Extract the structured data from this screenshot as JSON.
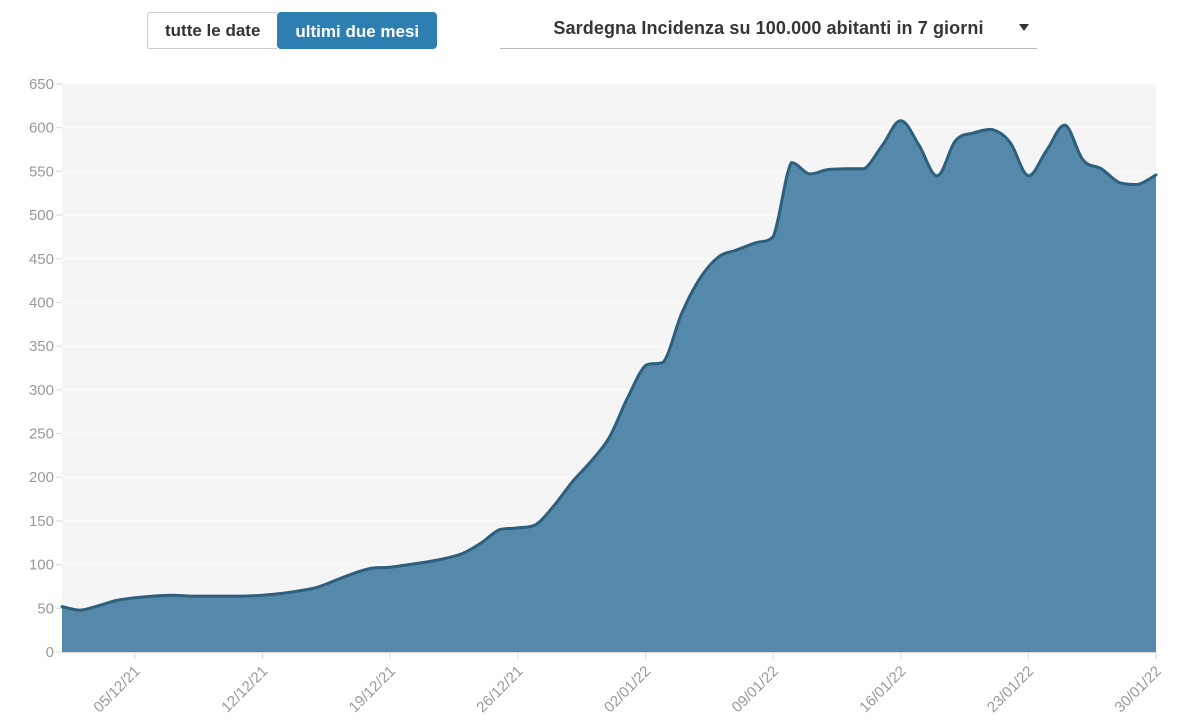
{
  "header": {
    "buttons": [
      {
        "label": "tutte le date",
        "active": false
      },
      {
        "label": "ultimi due mesi",
        "active": true
      }
    ],
    "dropdown": {
      "selected_option": "Sardegna Incidenza su 100.000 abitanti in 7 giorni",
      "caret_icon": "chevron-down"
    }
  },
  "colors": {
    "accent_blue": "#2c7fb0",
    "area_fill": "#5589a9",
    "line_stroke": "#2d5f7e",
    "plot_background": "#f5f5f5",
    "axis_label": "#999999",
    "grid_line": "#ffffff",
    "tick_mark": "#d6d6d6",
    "button_text_dark": "#333333",
    "border_gray": "#cccccc"
  },
  "chart_data": {
    "type": "area",
    "title": "Sardegna Incidenza su 100.000 abitanti in 7 giorni",
    "xlabel": "",
    "ylabel": "",
    "ylim": [
      0,
      650
    ],
    "y_ticks": [
      0,
      50,
      100,
      150,
      200,
      250,
      300,
      350,
      400,
      450,
      500,
      550,
      600,
      650
    ],
    "grid": true,
    "legend": "none",
    "x_tick_indices": [
      4,
      11,
      18,
      25,
      32,
      39,
      46,
      53,
      60
    ],
    "x_tick_labels": [
      "05/12/21",
      "12/12/21",
      "19/12/21",
      "26/12/21",
      "02/01/22",
      "09/01/22",
      "16/01/22",
      "23/01/22",
      "30/01/22"
    ],
    "dates": [
      "01/12/21",
      "02/12/21",
      "03/12/21",
      "04/12/21",
      "05/12/21",
      "06/12/21",
      "07/12/21",
      "08/12/21",
      "09/12/21",
      "10/12/21",
      "11/12/21",
      "12/12/21",
      "13/12/21",
      "14/12/21",
      "15/12/21",
      "16/12/21",
      "17/12/21",
      "18/12/21",
      "19/12/21",
      "20/12/21",
      "21/12/21",
      "22/12/21",
      "23/12/21",
      "24/12/21",
      "25/12/21",
      "26/12/21",
      "27/12/21",
      "28/12/21",
      "29/12/21",
      "30/12/21",
      "31/12/21",
      "01/01/22",
      "02/01/22",
      "03/01/22",
      "04/01/22",
      "05/01/22",
      "06/01/22",
      "07/01/22",
      "08/01/22",
      "09/01/22",
      "10/01/22",
      "11/01/22",
      "12/01/22",
      "13/01/22",
      "14/01/22",
      "15/01/22",
      "16/01/22",
      "17/01/22",
      "18/01/22",
      "19/01/22",
      "20/01/22",
      "21/01/22",
      "22/01/22",
      "23/01/22",
      "24/01/22",
      "25/01/22",
      "26/01/22",
      "27/01/22",
      "28/01/22",
      "29/01/22",
      "30/01/22"
    ],
    "values": [
      52,
      48,
      53,
      59,
      62,
      64,
      65,
      64,
      64,
      64,
      64,
      65,
      67,
      70,
      74,
      82,
      90,
      96,
      97,
      100,
      103,
      107,
      113,
      125,
      140,
      142,
      146,
      168,
      195,
      218,
      245,
      290,
      328,
      332,
      388,
      428,
      452,
      460,
      468,
      475,
      560,
      547,
      552,
      553,
      553,
      580,
      608,
      580,
      545,
      585,
      594,
      598,
      583,
      545,
      574,
      603,
      563,
      553,
      537,
      535,
      546
    ]
  }
}
